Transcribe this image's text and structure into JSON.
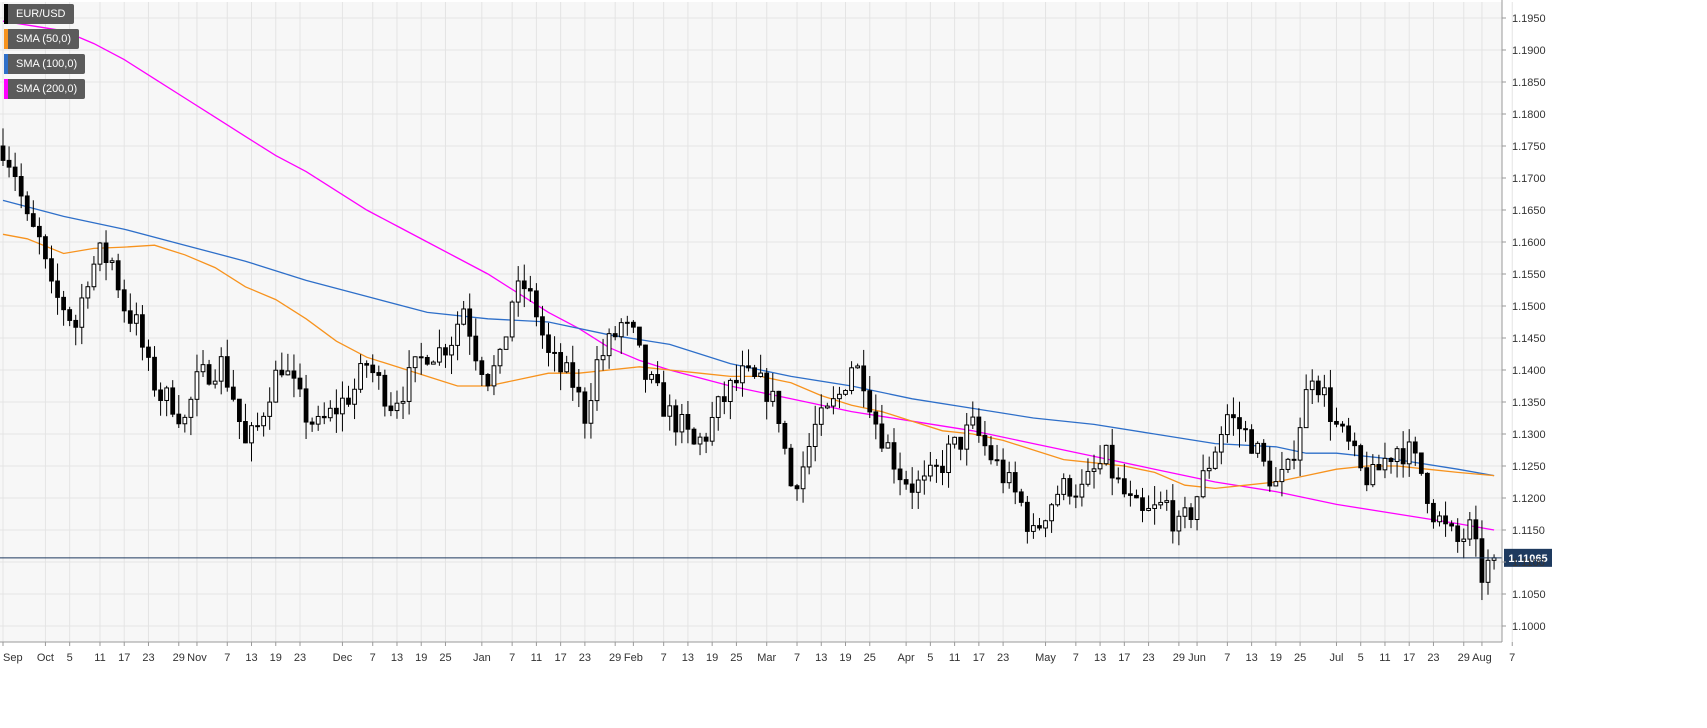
{
  "chart_data": {
    "type": "candlestick",
    "legend": [
      {
        "label": "EUR/USD",
        "color": "#000000"
      },
      {
        "label": "SMA (50,0)",
        "color": "#f7931e"
      },
      {
        "label": "SMA (100,0)",
        "color": "#2e6fc9"
      },
      {
        "label": "SMA (200,0)",
        "color": "#ff00ff"
      }
    ],
    "legend_position": "top-left",
    "grid": true,
    "ylim": [
      1.0975,
      1.1975
    ],
    "y_ticks": [
      "1.1950",
      "1.1900",
      "1.1850",
      "1.1800",
      "1.1750",
      "1.1700",
      "1.1650",
      "1.1600",
      "1.1550",
      "1.1500",
      "1.1450",
      "1.1400",
      "1.1350",
      "1.1300",
      "1.1250",
      "1.1200",
      "1.1150",
      "1.1100",
      "1.1050",
      "1.1000"
    ],
    "x_ticks": [
      {
        "label": "Sep",
        "i": 0
      },
      {
        "label": "Oct",
        "i": 7
      },
      {
        "label": "5",
        "i": 11
      },
      {
        "label": "11",
        "i": 16
      },
      {
        "label": "17",
        "i": 20
      },
      {
        "label": "23",
        "i": 24
      },
      {
        "label": "29",
        "i": 29
      },
      {
        "label": "Nov",
        "i": 32
      },
      {
        "label": "7",
        "i": 37
      },
      {
        "label": "13",
        "i": 41
      },
      {
        "label": "19",
        "i": 45
      },
      {
        "label": "23",
        "i": 49
      },
      {
        "label": "Dec",
        "i": 56
      },
      {
        "label": "7",
        "i": 61
      },
      {
        "label": "13",
        "i": 65
      },
      {
        "label": "19",
        "i": 69
      },
      {
        "label": "25",
        "i": 73
      },
      {
        "label": "Jan",
        "i": 79
      },
      {
        "label": "7",
        "i": 84
      },
      {
        "label": "11",
        "i": 88
      },
      {
        "label": "17",
        "i": 92
      },
      {
        "label": "23",
        "i": 96
      },
      {
        "label": "29",
        "i": 101
      },
      {
        "label": "Feb",
        "i": 104
      },
      {
        "label": "7",
        "i": 109
      },
      {
        "label": "13",
        "i": 113
      },
      {
        "label": "19",
        "i": 117
      },
      {
        "label": "25",
        "i": 121
      },
      {
        "label": "Mar",
        "i": 126
      },
      {
        "label": "7",
        "i": 131
      },
      {
        "label": "13",
        "i": 135
      },
      {
        "label": "19",
        "i": 139
      },
      {
        "label": "25",
        "i": 143
      },
      {
        "label": "Apr",
        "i": 149
      },
      {
        "label": "5",
        "i": 153
      },
      {
        "label": "11",
        "i": 157
      },
      {
        "label": "17",
        "i": 161
      },
      {
        "label": "23",
        "i": 165
      },
      {
        "label": "May",
        "i": 172
      },
      {
        "label": "7",
        "i": 177
      },
      {
        "label": "13",
        "i": 181
      },
      {
        "label": "17",
        "i": 185
      },
      {
        "label": "23",
        "i": 189
      },
      {
        "label": "29",
        "i": 194
      },
      {
        "label": "Jun",
        "i": 197
      },
      {
        "label": "7",
        "i": 202
      },
      {
        "label": "13",
        "i": 206
      },
      {
        "label": "19",
        "i": 210
      },
      {
        "label": "25",
        "i": 214
      },
      {
        "label": "Jul",
        "i": 220
      },
      {
        "label": "5",
        "i": 224
      },
      {
        "label": "11",
        "i": 228
      },
      {
        "label": "17",
        "i": 232
      },
      {
        "label": "23",
        "i": 236
      },
      {
        "label": "29",
        "i": 241
      },
      {
        "label": "Aug",
        "i": 244
      },
      {
        "label": "7",
        "i": 249
      }
    ],
    "current_price": "1.11065",
    "current_value": 1.11065,
    "anchors": [
      [
        0,
        1.175
      ],
      [
        2,
        1.171
      ],
      [
        4,
        1.163
      ],
      [
        6,
        1.16
      ],
      [
        8,
        1.152
      ],
      [
        10,
        1.15
      ],
      [
        12,
        1.147
      ],
      [
        14,
        1.155
      ],
      [
        16,
        1.158
      ],
      [
        18,
        1.157
      ],
      [
        20,
        1.15
      ],
      [
        22,
        1.147
      ],
      [
        24,
        1.14
      ],
      [
        26,
        1.136
      ],
      [
        28,
        1.135
      ],
      [
        30,
        1.132
      ],
      [
        32,
        1.138
      ],
      [
        34,
        1.14
      ],
      [
        36,
        1.141
      ],
      [
        38,
        1.136
      ],
      [
        40,
        1.128
      ],
      [
        42,
        1.131
      ],
      [
        44,
        1.137
      ],
      [
        46,
        1.141
      ],
      [
        48,
        1.137
      ],
      [
        50,
        1.133
      ],
      [
        52,
        1.131
      ],
      [
        54,
        1.133
      ],
      [
        56,
        1.135
      ],
      [
        58,
        1.137
      ],
      [
        60,
        1.141
      ],
      [
        62,
        1.138
      ],
      [
        64,
        1.135
      ],
      [
        66,
        1.137
      ],
      [
        68,
        1.14
      ],
      [
        70,
        1.143
      ],
      [
        72,
        1.143
      ],
      [
        74,
        1.145
      ],
      [
        76,
        1.15
      ],
      [
        78,
        1.143
      ],
      [
        80,
        1.139
      ],
      [
        82,
        1.141
      ],
      [
        84,
        1.151
      ],
      [
        86,
        1.153
      ],
      [
        88,
        1.149
      ],
      [
        90,
        1.142
      ],
      [
        92,
        1.14
      ],
      [
        94,
        1.138
      ],
      [
        96,
        1.133
      ],
      [
        98,
        1.141
      ],
      [
        100,
        1.144
      ],
      [
        102,
        1.147
      ],
      [
        104,
        1.145
      ],
      [
        106,
        1.139
      ],
      [
        108,
        1.136
      ],
      [
        110,
        1.133
      ],
      [
        112,
        1.131
      ],
      [
        114,
        1.128
      ],
      [
        116,
        1.13
      ],
      [
        118,
        1.134
      ],
      [
        120,
        1.137
      ],
      [
        122,
        1.139
      ],
      [
        124,
        1.138
      ],
      [
        126,
        1.137
      ],
      [
        128,
        1.133
      ],
      [
        130,
        1.122
      ],
      [
        132,
        1.125
      ],
      [
        134,
        1.131
      ],
      [
        136,
        1.133
      ],
      [
        138,
        1.136
      ],
      [
        140,
        1.141
      ],
      [
        142,
        1.139
      ],
      [
        144,
        1.132
      ],
      [
        146,
        1.128
      ],
      [
        148,
        1.124
      ],
      [
        150,
        1.122
      ],
      [
        152,
        1.122
      ],
      [
        154,
        1.124
      ],
      [
        156,
        1.127
      ],
      [
        158,
        1.129
      ],
      [
        160,
        1.131
      ],
      [
        162,
        1.128
      ],
      [
        164,
        1.125
      ],
      [
        166,
        1.122
      ],
      [
        168,
        1.119
      ],
      [
        170,
        1.114
      ],
      [
        172,
        1.118
      ],
      [
        174,
        1.121
      ],
      [
        176,
        1.122
      ],
      [
        178,
        1.121
      ],
      [
        180,
        1.124
      ],
      [
        182,
        1.126
      ],
      [
        184,
        1.122
      ],
      [
        186,
        1.119
      ],
      [
        188,
        1.117
      ],
      [
        190,
        1.118
      ],
      [
        192,
        1.119
      ],
      [
        194,
        1.115
      ],
      [
        196,
        1.118
      ],
      [
        198,
        1.123
      ],
      [
        200,
        1.128
      ],
      [
        202,
        1.133
      ],
      [
        204,
        1.131
      ],
      [
        206,
        1.129
      ],
      [
        208,
        1.125
      ],
      [
        210,
        1.122
      ],
      [
        212,
        1.124
      ],
      [
        214,
        1.132
      ],
      [
        216,
        1.14
      ],
      [
        218,
        1.136
      ],
      [
        220,
        1.131
      ],
      [
        222,
        1.128
      ],
      [
        224,
        1.124
      ],
      [
        226,
        1.123
      ],
      [
        228,
        1.126
      ],
      [
        230,
        1.128
      ],
      [
        232,
        1.127
      ],
      [
        234,
        1.124
      ],
      [
        236,
        1.118
      ],
      [
        238,
        1.115
      ],
      [
        240,
        1.113
      ],
      [
        242,
        1.115
      ],
      [
        244,
        1.108
      ],
      [
        246,
        1.1106
      ]
    ],
    "sma50": [
      [
        0,
        1.1612
      ],
      [
        4,
        1.1605
      ],
      [
        10,
        1.1582
      ],
      [
        15,
        1.159
      ],
      [
        20,
        1.1592
      ],
      [
        25,
        1.1595
      ],
      [
        30,
        1.158
      ],
      [
        35,
        1.156
      ],
      [
        40,
        1.153
      ],
      [
        45,
        1.151
      ],
      [
        50,
        1.148
      ],
      [
        55,
        1.1445
      ],
      [
        60,
        1.142
      ],
      [
        65,
        1.1405
      ],
      [
        70,
        1.139
      ],
      [
        75,
        1.1375
      ],
      [
        80,
        1.1375
      ],
      [
        85,
        1.1385
      ],
      [
        90,
        1.1395
      ],
      [
        95,
        1.1395
      ],
      [
        100,
        1.14
      ],
      [
        105,
        1.1405
      ],
      [
        110,
        1.14
      ],
      [
        115,
        1.1395
      ],
      [
        120,
        1.139
      ],
      [
        125,
        1.139
      ],
      [
        130,
        1.138
      ],
      [
        135,
        1.136
      ],
      [
        140,
        1.1345
      ],
      [
        145,
        1.1335
      ],
      [
        150,
        1.132
      ],
      [
        155,
        1.1305
      ],
      [
        160,
        1.13
      ],
      [
        165,
        1.129
      ],
      [
        170,
        1.1275
      ],
      [
        175,
        1.126
      ],
      [
        180,
        1.1255
      ],
      [
        185,
        1.125
      ],
      [
        190,
        1.124
      ],
      [
        195,
        1.122
      ],
      [
        200,
        1.1215
      ],
      [
        205,
        1.122
      ],
      [
        210,
        1.1225
      ],
      [
        215,
        1.1235
      ],
      [
        220,
        1.1245
      ],
      [
        225,
        1.125
      ],
      [
        230,
        1.125
      ],
      [
        235,
        1.1245
      ],
      [
        240,
        1.124
      ],
      [
        246,
        1.1235
      ]
    ],
    "sma100": [
      [
        0,
        1.1665
      ],
      [
        10,
        1.164
      ],
      [
        20,
        1.162
      ],
      [
        30,
        1.1595
      ],
      [
        40,
        1.157
      ],
      [
        50,
        1.154
      ],
      [
        60,
        1.1515
      ],
      [
        70,
        1.149
      ],
      [
        80,
        1.148
      ],
      [
        90,
        1.1475
      ],
      [
        100,
        1.1455
      ],
      [
        110,
        1.144
      ],
      [
        120,
        1.141
      ],
      [
        130,
        1.139
      ],
      [
        140,
        1.1375
      ],
      [
        150,
        1.1355
      ],
      [
        160,
        1.134
      ],
      [
        170,
        1.1325
      ],
      [
        180,
        1.1315
      ],
      [
        190,
        1.13
      ],
      [
        200,
        1.1285
      ],
      [
        210,
        1.128
      ],
      [
        215,
        1.127
      ],
      [
        220,
        1.127
      ],
      [
        230,
        1.126
      ],
      [
        240,
        1.1245
      ],
      [
        246,
        1.1235
      ]
    ],
    "sma200": [
      [
        0,
        1.1945
      ],
      [
        10,
        1.193
      ],
      [
        15,
        1.191
      ],
      [
        20,
        1.1885
      ],
      [
        25,
        1.1855
      ],
      [
        30,
        1.1825
      ],
      [
        35,
        1.1795
      ],
      [
        40,
        1.1765
      ],
      [
        45,
        1.1735
      ],
      [
        50,
        1.171
      ],
      [
        55,
        1.168
      ],
      [
        60,
        1.165
      ],
      [
        65,
        1.1625
      ],
      [
        70,
        1.16
      ],
      [
        75,
        1.1575
      ],
      [
        80,
        1.155
      ],
      [
        85,
        1.152
      ],
      [
        90,
        1.149
      ],
      [
        95,
        1.1465
      ],
      [
        100,
        1.1435
      ],
      [
        105,
        1.1415
      ],
      [
        110,
        1.14
      ],
      [
        120,
        1.1375
      ],
      [
        130,
        1.1355
      ],
      [
        140,
        1.1335
      ],
      [
        150,
        1.132
      ],
      [
        160,
        1.1305
      ],
      [
        170,
        1.1285
      ],
      [
        180,
        1.1265
      ],
      [
        190,
        1.1245
      ],
      [
        200,
        1.1225
      ],
      [
        210,
        1.121
      ],
      [
        220,
        1.119
      ],
      [
        230,
        1.1175
      ],
      [
        240,
        1.116
      ],
      [
        246,
        1.115
      ]
    ]
  }
}
